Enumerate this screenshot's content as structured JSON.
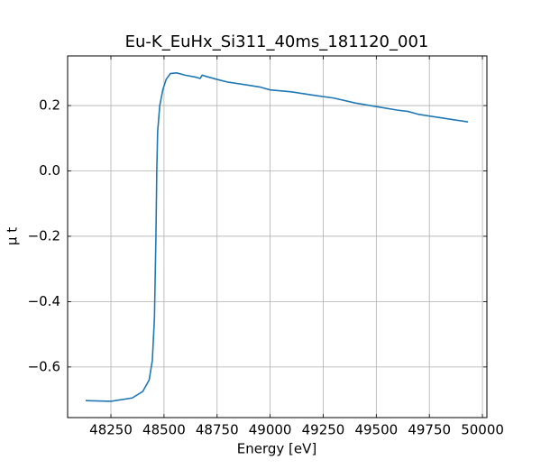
{
  "chart_data": {
    "type": "line",
    "title": "Eu-K_EuHx_Si311_40ms_181120_001",
    "x_label": "Energy [eV]",
    "y_label": "μ t",
    "grid": true,
    "xlim": [
      48046,
      50021
    ],
    "ylim": [
      -0.755,
      0.352
    ],
    "xticks": [
      48250,
      48500,
      48750,
      49000,
      49250,
      49500,
      49750,
      50000
    ],
    "yticks": [
      {
        "value": -0.6,
        "label": "−0.6"
      },
      {
        "value": -0.4,
        "label": "−0.4"
      },
      {
        "value": -0.2,
        "label": "−0.2"
      },
      {
        "value": 0,
        "label": "0.0"
      },
      {
        "value": 0.2,
        "label": "0.2"
      }
    ],
    "series": [
      {
        "name": "Eu-K_EuHx_Si311_40ms_181120_001",
        "color": "#1f77b4",
        "x": [
          48131,
          48250,
          48350,
          48400,
          48430,
          48445,
          48455,
          48462,
          48466,
          48470,
          48480,
          48495,
          48510,
          48530,
          48560,
          48600,
          48650,
          48670,
          48680,
          48700,
          48750,
          48800,
          48900,
          48950,
          49000,
          49100,
          49200,
          49300,
          49400,
          49500,
          49600,
          49650,
          49700,
          49800,
          49932
        ],
        "values": [
          -0.703,
          -0.705,
          -0.695,
          -0.675,
          -0.64,
          -0.58,
          -0.45,
          -0.2,
          0.0,
          0.12,
          0.2,
          0.25,
          0.28,
          0.298,
          0.3,
          0.293,
          0.287,
          0.283,
          0.293,
          0.289,
          0.28,
          0.272,
          0.262,
          0.257,
          0.248,
          0.242,
          0.232,
          0.223,
          0.208,
          0.197,
          0.186,
          0.182,
          0.173,
          0.163,
          0.15
        ]
      }
    ]
  }
}
